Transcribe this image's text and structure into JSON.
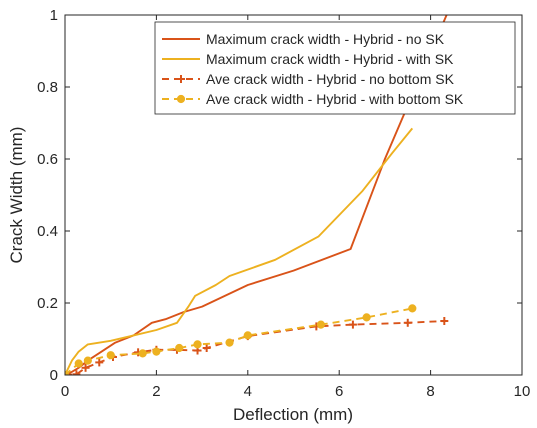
{
  "chart_data": {
    "type": "line",
    "xlabel": "Deflection (mm)",
    "ylabel": "Crack Width (mm)",
    "xlim": [
      0,
      10
    ],
    "ylim": [
      0,
      1
    ],
    "xticks": [
      0,
      2,
      4,
      6,
      8,
      10
    ],
    "yticks": [
      0,
      0.2,
      0.4,
      0.6,
      0.8,
      1
    ],
    "xtick_labels": [
      "0",
      "2",
      "4",
      "6",
      "8",
      "10"
    ],
    "ytick_labels": [
      "0",
      "0.2",
      "0.4",
      "0.6",
      "0.8",
      "1"
    ],
    "grid": false,
    "legend_position": "top-right",
    "series": [
      {
        "name": "Maximum crack width - Hybrid - no SK",
        "color": "#D95319",
        "style": "solid",
        "marker": "none",
        "x": [
          0,
          0.1,
          0.3,
          0.5,
          0.8,
          1.1,
          1.5,
          1.9,
          2.2,
          2.6,
          3.0,
          4.0,
          5.0,
          6.25,
          7.0,
          8.35
        ],
        "y": [
          0,
          0.005,
          0.02,
          0.04,
          0.065,
          0.09,
          0.11,
          0.145,
          0.155,
          0.175,
          0.19,
          0.25,
          0.29,
          0.35,
          0.6,
          1.0
        ]
      },
      {
        "name": "Maximum crack width - Hybrid - with SK",
        "color": "#EDB120",
        "style": "solid",
        "marker": "none",
        "x": [
          0,
          0.15,
          0.3,
          0.5,
          1.0,
          1.5,
          2.0,
          2.45,
          2.7,
          2.85,
          3.3,
          3.6,
          4.6,
          5.55,
          6.5,
          7.15,
          7.6
        ],
        "y": [
          0,
          0.04,
          0.065,
          0.085,
          0.095,
          0.11,
          0.125,
          0.145,
          0.19,
          0.22,
          0.25,
          0.275,
          0.32,
          0.385,
          0.51,
          0.615,
          0.685
        ]
      },
      {
        "name": "Ave crack width - Hybrid - no bottom SK",
        "color": "#D95319",
        "style": "dashed",
        "marker": "plus",
        "x": [
          0,
          0.25,
          0.45,
          0.75,
          1.05,
          1.6,
          2.0,
          2.45,
          2.9,
          3.1,
          4.0,
          5.5,
          6.3,
          7.5,
          8.3
        ],
        "y": [
          0,
          0.002,
          0.02,
          0.035,
          0.05,
          0.063,
          0.07,
          0.07,
          0.068,
          0.075,
          0.108,
          0.135,
          0.14,
          0.145,
          0.15
        ]
      },
      {
        "name": "Ave crack width - Hybrid - with bottom SK",
        "color": "#EDB120",
        "style": "dashed",
        "marker": "circle",
        "x": [
          0,
          0.3,
          0.5,
          1.0,
          1.7,
          2.0,
          2.5,
          2.9,
          3.6,
          4.0,
          5.6,
          6.6,
          7.6
        ],
        "y": [
          0,
          0.032,
          0.04,
          0.055,
          0.06,
          0.065,
          0.075,
          0.085,
          0.09,
          0.11,
          0.14,
          0.16,
          0.185
        ]
      }
    ]
  }
}
